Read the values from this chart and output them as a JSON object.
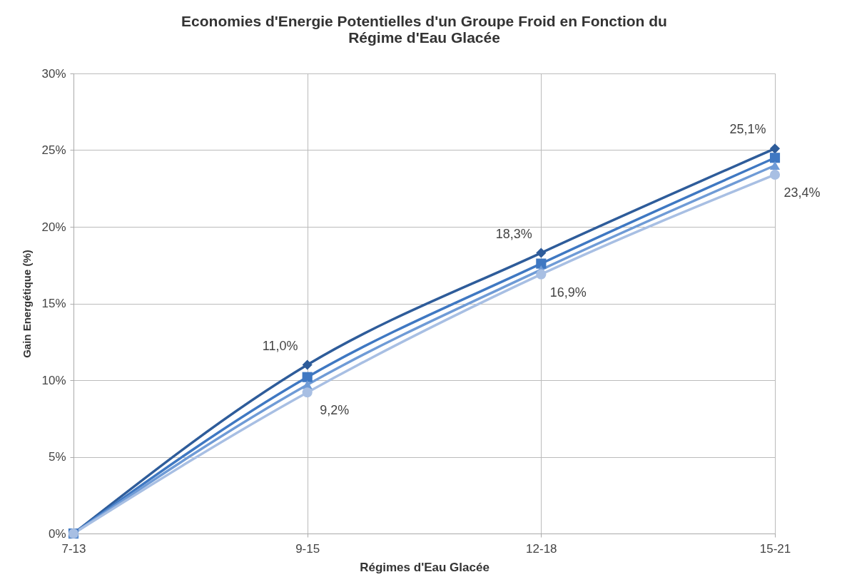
{
  "chart_data": {
    "type": "line",
    "title": "Economies d'Energie Potentielles d'un Groupe Froid en Fonction du Régime d'Eau Glacée",
    "xlabel": "Régimes d'Eau Glacée",
    "ylabel": "Gain Energétique (%)",
    "categories": [
      "7-13",
      "9-15",
      "12-18",
      "15-21"
    ],
    "series": [
      {
        "color": "#2e5c9a",
        "marker": "diamond",
        "values": [
          0,
          11.0,
          18.3,
          25.1
        ],
        "value_labels": [
          null,
          "11,0%",
          "18,3%",
          "25,1%"
        ]
      },
      {
        "color": "#3f78c2",
        "marker": "square",
        "values": [
          0,
          10.2,
          17.6,
          24.5
        ]
      },
      {
        "color": "#6f9bd6",
        "marker": "triangle",
        "values": [
          0,
          9.7,
          17.2,
          24.0
        ]
      },
      {
        "color": "#a8bfe3",
        "marker": "circle",
        "values": [
          0,
          9.2,
          16.9,
          23.4
        ],
        "value_labels": [
          null,
          "9,2%",
          "16,9%",
          "23,4%"
        ]
      }
    ],
    "ylim": [
      0,
      30
    ],
    "yticks": [
      {
        "value": 0,
        "label": "0%"
      },
      {
        "value": 5,
        "label": "5%"
      },
      {
        "value": 10,
        "label": "10%"
      },
      {
        "value": 15,
        "label": "15%"
      },
      {
        "value": 20,
        "label": "20%"
      },
      {
        "value": 25,
        "label": "25%"
      },
      {
        "value": 30,
        "label": "30%"
      }
    ],
    "grid": true,
    "legend": false
  }
}
